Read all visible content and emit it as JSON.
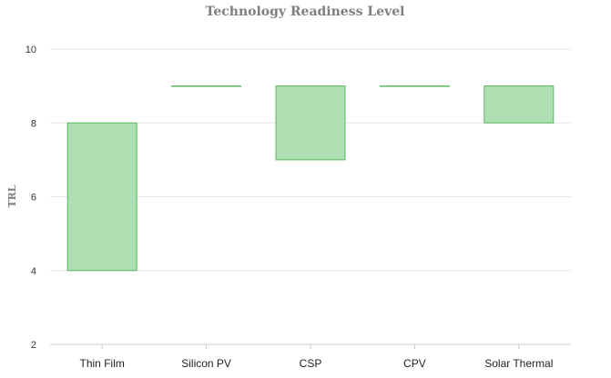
{
  "chart_data": {
    "type": "bar",
    "subtype": "floating-range",
    "title": "Technology Readiness Level",
    "ylabel": "TRL",
    "xlabel": "",
    "categories": [
      "Thin Film",
      "Silicon PV",
      "CSP",
      "CPV",
      "Solar Thermal"
    ],
    "ranges": [
      {
        "category": "Thin Film",
        "low": 4,
        "high": 8
      },
      {
        "category": "Silicon PV",
        "low": 9,
        "high": 9
      },
      {
        "category": "CSP",
        "low": 7,
        "high": 9
      },
      {
        "category": "CPV",
        "low": 9,
        "high": 9
      },
      {
        "category": "Solar Thermal",
        "low": 8,
        "high": 9
      }
    ],
    "ylim": [
      2,
      10
    ],
    "yticks": [
      "2",
      "4",
      "6",
      "8",
      "10"
    ],
    "grid": true,
    "legend": "none",
    "colors": {
      "fill": "#addfb3",
      "stroke": "#5cb85c"
    }
  }
}
